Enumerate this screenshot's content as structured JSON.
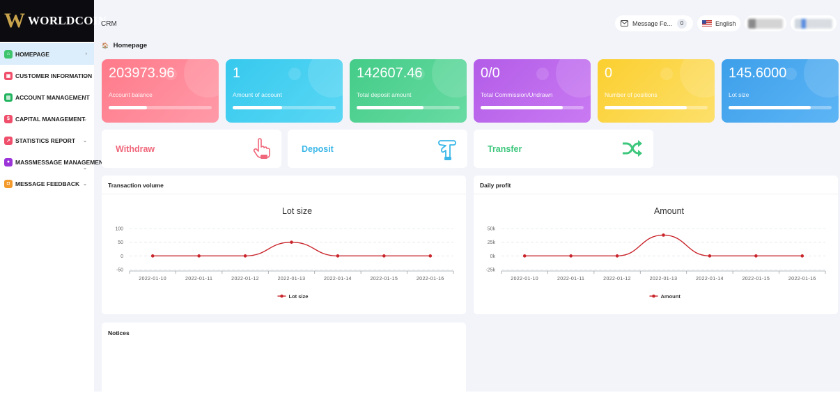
{
  "brand": {
    "mark": "W",
    "name": "WORLDCOIN"
  },
  "sidebar": {
    "items": [
      {
        "label": "HOMEPAGE",
        "chev": "›",
        "color": "#3ec46d",
        "icon": "home-icon",
        "active": true
      },
      {
        "label": "CUSTOMER INFORMATION",
        "chev": "⌄",
        "color": "#ef4f6b",
        "icon": "id-card-icon"
      },
      {
        "label": "ACCOUNT MANAGEMENT",
        "chev": "⌄",
        "color": "#22b35f",
        "icon": "bank-icon"
      },
      {
        "label": "CAPITAL MANAGEMENT",
        "chev": "⌄",
        "color": "#ef4f6b",
        "icon": "dollar-icon"
      },
      {
        "label": "STATISTICS REPORT",
        "chev": "⌄",
        "color": "#ef4f6b",
        "icon": "chart-icon"
      },
      {
        "label": "MASSMESSAGE MANAGEMENT",
        "chev": "⌄",
        "color": "#9b35d8",
        "icon": "chat-icon"
      },
      {
        "label": "MESSAGE FEEDBACK",
        "chev": "⌄",
        "color": "#f39a2b",
        "icon": "feedback-icon"
      }
    ]
  },
  "topbar": {
    "app_label": "CRM",
    "message": "Message Fe...",
    "message_count": "0",
    "language": "English"
  },
  "breadcrumb": {
    "icon": "🏠",
    "label": "Homepage"
  },
  "stats": [
    {
      "value": "203973.96",
      "label": "Account balance",
      "progress": 0.37,
      "from": "#ff7a8a",
      "to": "#ff9aa8"
    },
    {
      "value": "1",
      "label": "Amount of account",
      "progress": 0.48,
      "from": "#36c9ee",
      "to": "#5ad7f4"
    },
    {
      "value": "142607.46",
      "label": "Total deposit amount",
      "progress": 0.65,
      "from": "#44cc88",
      "to": "#68dba3"
    },
    {
      "value": "0/0",
      "label": "Total Commission/Undrawn",
      "progress": 0.8,
      "from": "#b35ce8",
      "to": "#c97af2"
    },
    {
      "value": "0",
      "label": "Number of positions",
      "progress": 0.8,
      "from": "#fbcf2f",
      "to": "#fde06b"
    },
    {
      "value": "145.6000",
      "label": "Lot size",
      "progress": 0.8,
      "from": "#3d9fea",
      "to": "#5db5f5"
    }
  ],
  "actions": [
    {
      "label": "Withdraw",
      "color": "#f0667a",
      "icon": "hand-pointing-icon"
    },
    {
      "label": "Deposit",
      "color": "#3ab7e8",
      "icon": "hand-deposit-icon"
    },
    {
      "label": "Transfer",
      "color": "#3dc77c",
      "icon": "shuffle-icon"
    }
  ],
  "transaction": {
    "header": "Transaction volume"
  },
  "daily": {
    "header": "Daily profit"
  },
  "notices": {
    "header": "Notices"
  },
  "chart_data": [
    {
      "type": "line",
      "title": "Lot size",
      "x": [
        "2022-01-10",
        "2022-01-11",
        "2022-01-12",
        "2022-01-13",
        "2022-01-14",
        "2022-01-15",
        "2022-01-16"
      ],
      "series": [
        {
          "name": "Lot size",
          "values": [
            0,
            0,
            0,
            50,
            0,
            0,
            0
          ],
          "color": "#c9262c"
        }
      ],
      "yticks": [
        100,
        50,
        0,
        -50
      ],
      "ytick_labels": [
        "100",
        "50",
        "0",
        "-50"
      ],
      "ylim": [
        -50,
        100
      ],
      "grid": true,
      "legend": "bottom"
    },
    {
      "type": "line",
      "title": "Amount",
      "x": [
        "2022-01-10",
        "2022-01-11",
        "2022-01-12",
        "2022-01-13",
        "2022-01-14",
        "2022-01-15",
        "2022-01-16"
      ],
      "series": [
        {
          "name": "Amount",
          "values": [
            0,
            0,
            0,
            38000,
            0,
            0,
            0
          ],
          "color": "#c9262c"
        }
      ],
      "yticks": [
        50000,
        25000,
        0,
        -25000
      ],
      "ytick_labels": [
        "50k",
        "25k",
        "0k",
        "-25k"
      ],
      "ylim": [
        -25000,
        50000
      ],
      "grid": true,
      "legend": "bottom"
    }
  ]
}
